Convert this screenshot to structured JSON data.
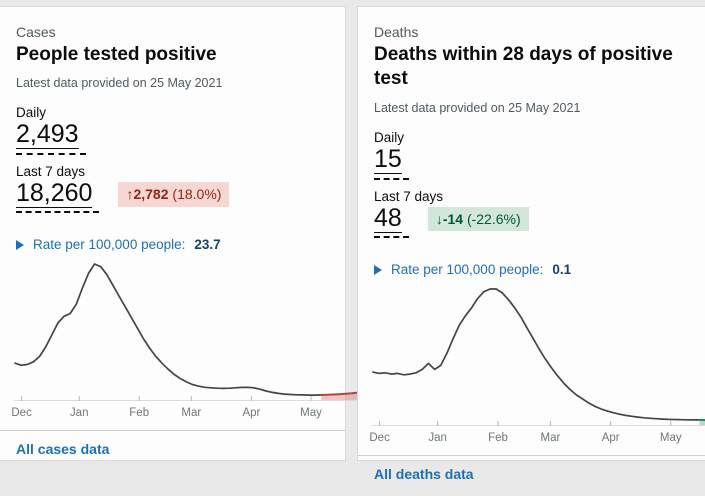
{
  "cards": [
    {
      "eyebrow": "Cases",
      "title": "People tested positive",
      "provided": "Latest data provided on 25 May 2021",
      "daily_label": "Daily",
      "daily_value": "2,493",
      "week_label": "Last 7 days",
      "week_value": "18,260",
      "change": {
        "direction": "up",
        "arrow": "↑",
        "value": "2,782",
        "percent": "(18.0%)",
        "text_color": "#942514",
        "bg_color": "#f6d7d2"
      },
      "rate_label": "Rate per 100,000 people:",
      "rate_value": "23.7",
      "footer_link": "All cases data",
      "chart_data": {
        "type": "line",
        "x_axis_labels": [
          "Dec",
          "Jan",
          "Feb",
          "Mar",
          "Apr",
          "May"
        ],
        "tick_x_percent": [
          2.2,
          18.9,
          36.3,
          51.4,
          68.8,
          86.1
        ],
        "y_unit": "fraction of peak daily cases",
        "values": [
          0.26,
          0.245,
          0.25,
          0.27,
          0.31,
          0.38,
          0.47,
          0.56,
          0.61,
          0.63,
          0.7,
          0.82,
          0.93,
          1.0,
          0.98,
          0.92,
          0.84,
          0.76,
          0.68,
          0.6,
          0.52,
          0.44,
          0.37,
          0.31,
          0.26,
          0.215,
          0.175,
          0.145,
          0.12,
          0.1,
          0.088,
          0.08,
          0.076,
          0.073,
          0.072,
          0.073,
          0.076,
          0.079,
          0.08,
          0.076,
          0.066,
          0.052,
          0.042,
          0.034,
          0.029,
          0.026,
          0.024,
          0.023,
          0.022,
          0.022,
          0.023,
          0.024,
          0.026,
          0.028,
          0.031,
          0.035,
          0.04
        ],
        "highlight_from": 50,
        "line_color": "#40464b",
        "highlight_line_color": "#b1453b",
        "highlight_fill_color": "rgba(214,110,102,0.38)",
        "axis_color": "#dcdcdc",
        "tick_color": "#b6b6b6",
        "label_color": "#6f777b"
      }
    },
    {
      "eyebrow": "Deaths",
      "title": "Deaths within 28 days of positive test",
      "provided": "Latest data provided on 25 May 2021",
      "daily_label": "Daily",
      "daily_value": "15",
      "week_label": "Last 7 days",
      "week_value": "48",
      "change": {
        "direction": "down",
        "arrow": "↓",
        "value": "-14",
        "percent": "(-22.6%)",
        "text_color": "#005a30",
        "bg_color": "#d3e6db"
      },
      "rate_label": "Rate per 100,000 people:",
      "rate_value": "0.1",
      "footer_link": "All deaths data",
      "chart_data": {
        "type": "line",
        "x_axis_labels": [
          "Dec",
          "Jan",
          "Feb",
          "Mar",
          "Apr",
          "May"
        ],
        "tick_x_percent": [
          2.2,
          18.9,
          36.3,
          51.4,
          68.8,
          86.1
        ],
        "y_unit": "fraction of peak daily deaths",
        "values": [
          0.38,
          0.37,
          0.375,
          0.365,
          0.37,
          0.36,
          0.365,
          0.375,
          0.4,
          0.445,
          0.4,
          0.43,
          0.52,
          0.63,
          0.73,
          0.8,
          0.86,
          0.93,
          0.98,
          1.0,
          1.0,
          0.97,
          0.92,
          0.86,
          0.79,
          0.71,
          0.63,
          0.55,
          0.475,
          0.41,
          0.35,
          0.295,
          0.25,
          0.21,
          0.18,
          0.15,
          0.125,
          0.105,
          0.09,
          0.077,
          0.066,
          0.057,
          0.05,
          0.044,
          0.039,
          0.035,
          0.032,
          0.029,
          0.027,
          0.026,
          0.025,
          0.024,
          0.023,
          0.023,
          0.022,
          0.022,
          0.022
        ],
        "highlight_from": 53,
        "line_color": "#40464b",
        "highlight_line_color": "#1d8b57",
        "highlight_fill_color": "rgba(64,150,105,0.35)",
        "axis_color": "#dcdcdc",
        "tick_color": "#b6b6b6",
        "label_color": "#6f777b"
      }
    }
  ]
}
